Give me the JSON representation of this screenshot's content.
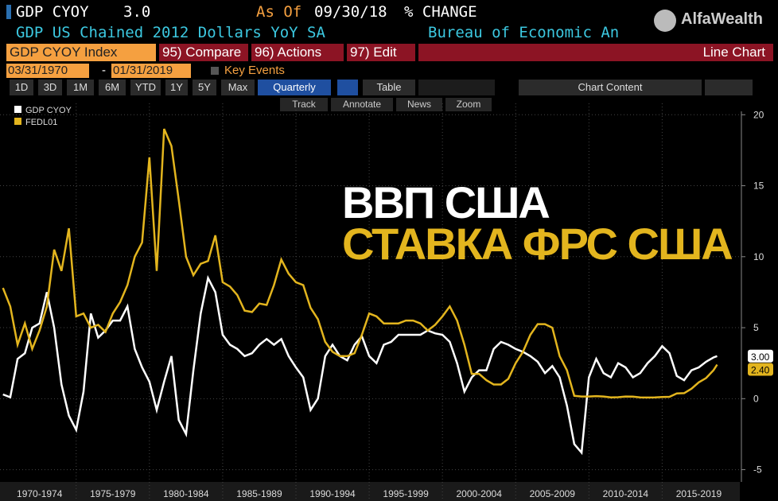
{
  "header": {
    "ticker": "GDP CYOY",
    "last": "3.0",
    "as_of_label": "As Of",
    "as_of": "09/30/18",
    "unit": "% CHANGE",
    "description": "GDP US Chained 2012 Dollars YoY SA",
    "source": "Bureau of Economic An",
    "brand": "AlfaWealth"
  },
  "toolbar": {
    "security": "GDP CYOY Index",
    "menus": [
      "95) Compare",
      "96) Actions",
      "97) Edit"
    ],
    "view": "Line Chart",
    "start": "03/31/1970",
    "dash": "-",
    "end": "01/31/2019",
    "key_events": "Key Events",
    "ranges": [
      "1D",
      "3D",
      "1M",
      "6M",
      "YTD",
      "1Y",
      "5Y",
      "Max"
    ],
    "frequency": "Quarterly",
    "table": "Table",
    "chart_content": "Chart Content",
    "tools": [
      "Track",
      "Annotate",
      "News",
      "Zoom"
    ]
  },
  "overlay": {
    "line1": "ВВП США",
    "line2": "СТАВКА ФРС США"
  },
  "chart_data": {
    "type": "line",
    "x": [
      1970,
      1970.5,
      1971,
      1971.5,
      1972,
      1972.5,
      1973,
      1973.5,
      1974,
      1974.5,
      1975,
      1975.5,
      1976,
      1976.5,
      1977,
      1977.5,
      1978,
      1978.5,
      1979,
      1979.5,
      1980,
      1980.5,
      1981,
      1981.5,
      1982,
      1982.5,
      1983,
      1983.5,
      1984,
      1984.5,
      1985,
      1985.5,
      1986,
      1986.5,
      1987,
      1987.5,
      1988,
      1988.5,
      1989,
      1989.5,
      1990,
      1990.5,
      1991,
      1991.5,
      1992,
      1992.5,
      1993,
      1993.5,
      1994,
      1994.5,
      1995,
      1995.5,
      1996,
      1996.5,
      1997,
      1997.5,
      1998,
      1998.5,
      1999,
      1999.5,
      2000,
      2000.5,
      2001,
      2001.5,
      2002,
      2002.5,
      2003,
      2003.5,
      2004,
      2004.5,
      2005,
      2005.5,
      2006,
      2006.5,
      2007,
      2007.5,
      2008,
      2008.5,
      2009,
      2009.5,
      2010,
      2010.5,
      2011,
      2011.5,
      2012,
      2012.5,
      2013,
      2013.5,
      2014,
      2014.5,
      2015,
      2015.5,
      2016,
      2016.5,
      2017,
      2017.5,
      2018,
      2018.5,
      2018.75
    ],
    "series": [
      {
        "name": "GDP CYOY",
        "color": "#ffffff",
        "last_value_label": "3.00",
        "values": [
          0.3,
          0.1,
          2.8,
          3.2,
          5,
          5.3,
          7.5,
          5,
          1,
          -1.2,
          -2.2,
          0.5,
          6,
          4.3,
          4.8,
          5.5,
          5.5,
          6.5,
          3.5,
          2.2,
          1.2,
          -0.8,
          1.2,
          3,
          -1.5,
          -2.5,
          2,
          6,
          8.5,
          7.5,
          4.5,
          3.8,
          3.5,
          3,
          3.2,
          3.8,
          4.2,
          3.8,
          4.2,
          3,
          2.2,
          1.5,
          -0.8,
          0,
          3,
          3.8,
          3,
          2.7,
          3.8,
          4.4,
          3,
          2.5,
          3.8,
          4,
          4.5,
          4.5,
          4.5,
          4.5,
          4.8,
          4.6,
          4.5,
          4,
          2.5,
          0.5,
          1.5,
          2,
          2,
          3.5,
          4,
          3.8,
          3.5,
          3.3,
          3,
          2.6,
          1.8,
          2.3,
          1.5,
          -0.5,
          -3.2,
          -3.8,
          1.5,
          2.8,
          1.8,
          1.5,
          2.5,
          2.2,
          1.5,
          1.8,
          2.5,
          3,
          3.7,
          3.2,
          1.6,
          1.3,
          2,
          2.2,
          2.6,
          2.9,
          3.0
        ]
      },
      {
        "name": "FEDL01",
        "color": "#e3b51e",
        "last_value_label": "2.40",
        "values": [
          7.8,
          6.5,
          3.8,
          5.3,
          3.5,
          4.8,
          6.5,
          10.5,
          9,
          12,
          5.8,
          6,
          5,
          5.2,
          4.7,
          6,
          6.8,
          8,
          10,
          11,
          17,
          9,
          19,
          17.8,
          14,
          10,
          8.7,
          9.5,
          9.7,
          11.5,
          8.2,
          7.9,
          7.3,
          6.2,
          6.1,
          6.7,
          6.6,
          8,
          9.8,
          8.8,
          8.2,
          8,
          6.4,
          5.6,
          4,
          3.3,
          3,
          3,
          3.2,
          4.5,
          6,
          5.8,
          5.3,
          5.3,
          5.3,
          5.5,
          5.5,
          5.3,
          4.8,
          5.2,
          5.8,
          6.5,
          5.5,
          3.8,
          1.75,
          1.75,
          1.3,
          1,
          1,
          1.4,
          2.5,
          3.3,
          4.5,
          5.25,
          5.25,
          5,
          3,
          2,
          0.2,
          0.15,
          0.15,
          0.18,
          0.15,
          0.09,
          0.1,
          0.15,
          0.14,
          0.09,
          0.08,
          0.09,
          0.12,
          0.13,
          0.37,
          0.39,
          0.7,
          1.15,
          1.45,
          2.0,
          2.4
        ]
      }
    ],
    "xlim": [
      1969.8,
      2020.3
    ],
    "xticks": [
      {
        "value": 1970,
        "label": "1970-1974"
      },
      {
        "value": 1975,
        "label": "1975-1979"
      },
      {
        "value": 1980,
        "label": "1980-1984"
      },
      {
        "value": 1985,
        "label": "1985-1989"
      },
      {
        "value": 1990,
        "label": "1990-1994"
      },
      {
        "value": 1995,
        "label": "1995-1999"
      },
      {
        "value": 2000,
        "label": "2000-2004"
      },
      {
        "value": 2005,
        "label": "2005-2009"
      },
      {
        "value": 2010,
        "label": "2010-2014"
      },
      {
        "value": 2015,
        "label": "2015-2019"
      }
    ],
    "ylim": [
      -6.2,
      20.8
    ],
    "yticks": [
      -5,
      0,
      5,
      10,
      15,
      20
    ],
    "grid": true,
    "legend": "top-left"
  }
}
